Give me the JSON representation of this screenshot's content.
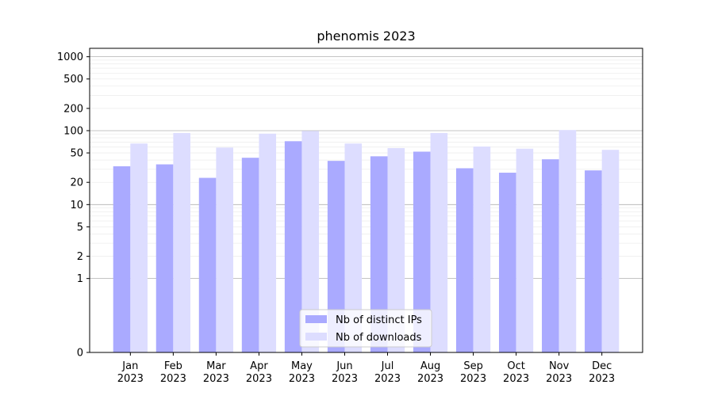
{
  "chart_data": {
    "type": "bar",
    "title": "phenomis 2023",
    "xlabel": "",
    "ylabel": "",
    "yscale": "symlog",
    "ylim": [
      0,
      1300
    ],
    "yticks": [
      0,
      1,
      2,
      5,
      10,
      20,
      50,
      100,
      200,
      500,
      1000
    ],
    "categories": [
      "Jan\n2023",
      "Feb\n2023",
      "Mar\n2023",
      "Apr\n2023",
      "May\n2023",
      "Jun\n2023",
      "Jul\n2023",
      "Aug\n2023",
      "Sep\n2023",
      "Oct\n2023",
      "Nov\n2023",
      "Dec\n2023"
    ],
    "category_lines": [
      [
        "Jan",
        "2023"
      ],
      [
        "Feb",
        "2023"
      ],
      [
        "Mar",
        "2023"
      ],
      [
        "Apr",
        "2023"
      ],
      [
        "May",
        "2023"
      ],
      [
        "Jun",
        "2023"
      ],
      [
        "Jul",
        "2023"
      ],
      [
        "Aug",
        "2023"
      ],
      [
        "Sep",
        "2023"
      ],
      [
        "Oct",
        "2023"
      ],
      [
        "Nov",
        "2023"
      ],
      [
        "Dec",
        "2023"
      ]
    ],
    "series": [
      {
        "name": "Nb of distinct IPs",
        "color": "#aaaaff",
        "values": [
          33,
          35,
          23,
          43,
          72,
          39,
          45,
          52,
          31,
          27,
          41,
          29
        ]
      },
      {
        "name": "Nb of downloads",
        "color": "#ddddff",
        "values": [
          67,
          93,
          59,
          91,
          99,
          67,
          58,
          93,
          61,
          57,
          102,
          55
        ]
      }
    ],
    "grid": true,
    "legend": "lower-center"
  }
}
